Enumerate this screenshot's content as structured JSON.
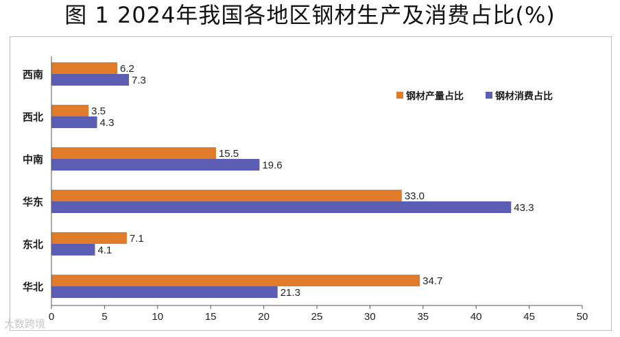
{
  "title": "图 1 2024年我国各地区钢材生产及消费占比(%)",
  "watermark": "大数跨境",
  "colors": {
    "production": "#E07B2A",
    "consumption": "#5B5EB3",
    "axis": "#555555"
  },
  "chart_data": {
    "type": "bar",
    "orientation": "horizontal",
    "categories": [
      "西南",
      "西北",
      "中南",
      "华东",
      "东北",
      "华北"
    ],
    "series": [
      {
        "name": "钢材产量占比",
        "values": [
          6.2,
          3.5,
          15.5,
          33.0,
          7.1,
          34.7
        ]
      },
      {
        "name": "钢材消费占比",
        "values": [
          7.3,
          4.3,
          19.6,
          43.3,
          4.1,
          21.3
        ]
      }
    ],
    "value_labels": [
      [
        "6.2",
        "3.5",
        "15.5",
        "33.0",
        "7.1",
        "34.7"
      ],
      [
        "7.3",
        "4.3",
        "19.6",
        "43.3",
        "4.1",
        "21.3"
      ]
    ],
    "xlim": [
      0,
      50
    ],
    "xticks": [
      "0",
      "5",
      "10",
      "15",
      "20",
      "25",
      "30",
      "35",
      "40",
      "45",
      "50"
    ],
    "grid": false,
    "legend_position": "top-right"
  }
}
